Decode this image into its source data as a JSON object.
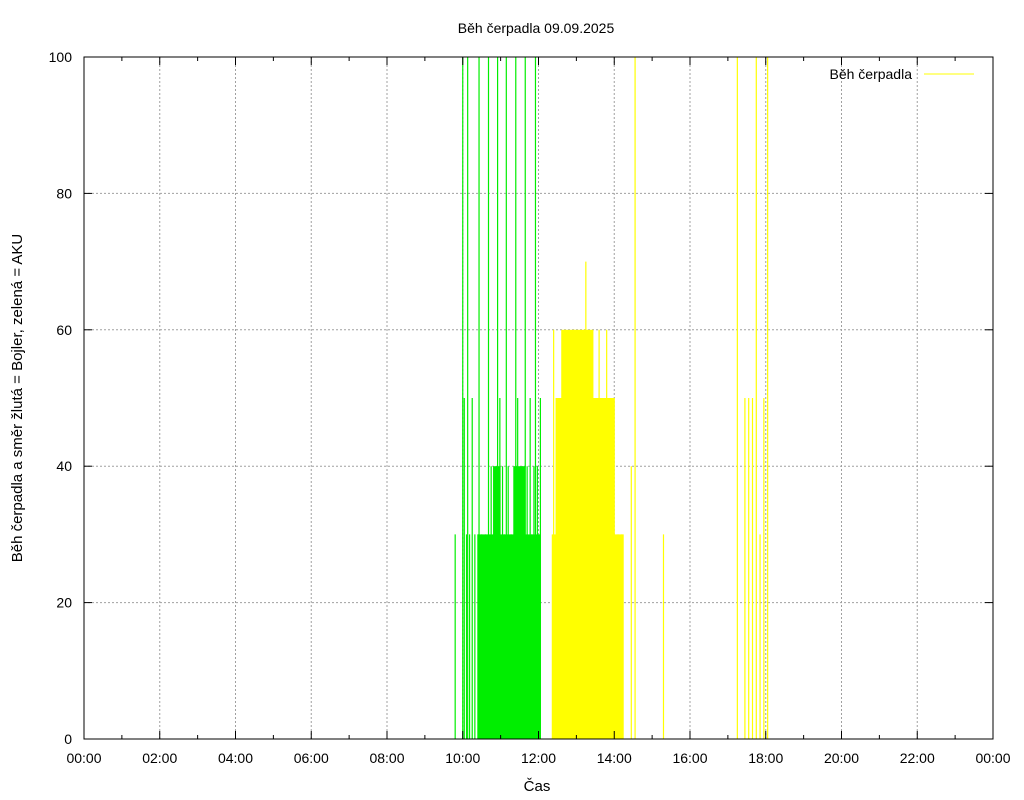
{
  "chart_data": {
    "type": "bar",
    "title": "Běh čerpadla 09.09.2025",
    "xlabel": "Čas",
    "ylabel": "Běh čerpadla a směr žlutá = Bojler, zelená = AKU",
    "xlim": [
      0,
      24
    ],
    "ylim": [
      0,
      100
    ],
    "grid": true,
    "x_ticks": [
      "00:00",
      "02:00",
      "04:00",
      "06:00",
      "08:00",
      "10:00",
      "12:00",
      "14:00",
      "16:00",
      "18:00",
      "20:00",
      "22:00",
      "00:00"
    ],
    "y_ticks": [
      0,
      20,
      40,
      60,
      80,
      100
    ],
    "legend": {
      "position": "top-right",
      "entries": [
        {
          "label": "Běh čerpadla",
          "color": "#ffff00"
        }
      ]
    },
    "colors": {
      "green": "#00ee00",
      "yellow": "#ffff00",
      "grid": "#a0a0a0"
    },
    "series": [
      {
        "name": "AKU",
        "color": "#00ee00",
        "points": [
          [
            9.8,
            30
          ],
          [
            10.0,
            100
          ],
          [
            10.04,
            50
          ],
          [
            10.1,
            30
          ],
          [
            10.13,
            100
          ],
          [
            10.18,
            30
          ],
          [
            10.25,
            50
          ],
          [
            10.32,
            30
          ],
          [
            10.4,
            30
          ],
          [
            10.43,
            100
          ],
          [
            10.5,
            30
          ],
          [
            10.6,
            30
          ],
          [
            10.68,
            100
          ],
          [
            10.75,
            40
          ],
          [
            10.82,
            30
          ],
          [
            10.88,
            40
          ],
          [
            10.92,
            100
          ],
          [
            10.98,
            50
          ],
          [
            11.05,
            40
          ],
          [
            11.1,
            30
          ],
          [
            11.15,
            100
          ],
          [
            11.2,
            40
          ],
          [
            11.28,
            30
          ],
          [
            11.35,
            40
          ],
          [
            11.4,
            100
          ],
          [
            11.45,
            50
          ],
          [
            11.5,
            30
          ],
          [
            11.58,
            40
          ],
          [
            11.65,
            100
          ],
          [
            11.7,
            40
          ],
          [
            11.78,
            50
          ],
          [
            11.82,
            30
          ],
          [
            11.88,
            40
          ],
          [
            11.92,
            100
          ],
          [
            11.97,
            40
          ],
          [
            12.02,
            30
          ],
          [
            12.05,
            50
          ]
        ],
        "fills": [
          [
            10.4,
            12.05,
            30
          ],
          [
            10.8,
            11.0,
            40
          ],
          [
            11.35,
            11.65,
            40
          ]
        ]
      },
      {
        "name": "Bojler",
        "color": "#ffff00",
        "points": [
          [
            12.4,
            60
          ],
          [
            12.55,
            50
          ],
          [
            12.7,
            60
          ],
          [
            12.8,
            50
          ],
          [
            12.95,
            60
          ],
          [
            13.1,
            50
          ],
          [
            13.2,
            60
          ],
          [
            13.25,
            70
          ],
          [
            13.3,
            60
          ],
          [
            13.4,
            50
          ],
          [
            13.5,
            50
          ],
          [
            13.6,
            60
          ],
          [
            13.7,
            50
          ],
          [
            13.8,
            60
          ],
          [
            13.9,
            50
          ],
          [
            14.0,
            50
          ],
          [
            14.1,
            30
          ],
          [
            14.2,
            30
          ],
          [
            14.45,
            40
          ],
          [
            14.55,
            100
          ],
          [
            15.3,
            30
          ],
          [
            17.25,
            100
          ],
          [
            17.45,
            50
          ],
          [
            17.55,
            50
          ],
          [
            17.65,
            50
          ],
          [
            17.75,
            100
          ],
          [
            17.85,
            30
          ],
          [
            17.95,
            50
          ],
          [
            18.05,
            100
          ]
        ],
        "fills": [
          [
            12.35,
            14.25,
            30
          ],
          [
            12.45,
            14.0,
            50
          ],
          [
            12.6,
            13.45,
            60
          ]
        ]
      }
    ]
  }
}
